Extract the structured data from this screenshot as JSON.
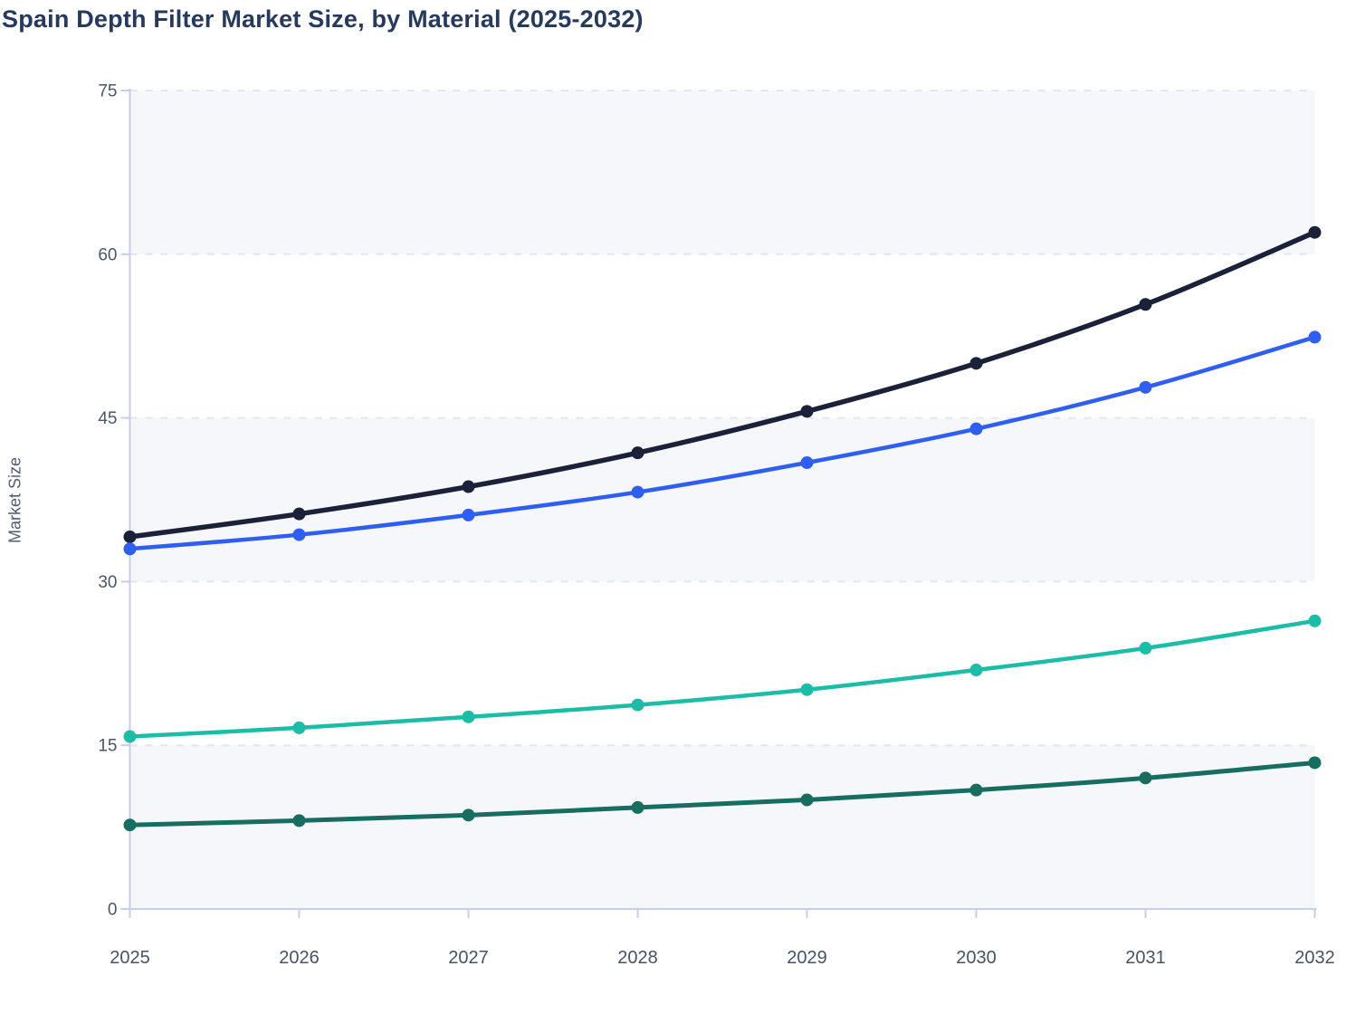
{
  "chart_data": {
    "type": "line",
    "title": "Spain Depth Filter Market Size, by Material (2025-2032)",
    "xlabel": "",
    "ylabel": "Market Size",
    "x": [
      "2025",
      "2026",
      "2027",
      "2028",
      "2029",
      "2030",
      "2031",
      "2032"
    ],
    "series": [
      {
        "name": "series-dark-navy",
        "color": "#1a2138",
        "line_width": 5.5,
        "values": [
          34.1,
          36.2,
          38.7,
          41.8,
          45.6,
          50.0,
          55.4,
          62.0
        ]
      },
      {
        "name": "series-blue",
        "color": "#2e5ff2",
        "line_width": 4.5,
        "values": [
          33.0,
          34.3,
          36.1,
          38.2,
          40.9,
          44.0,
          47.8,
          52.4
        ]
      },
      {
        "name": "series-teal",
        "color": "#1bbda6",
        "line_width": 4.5,
        "values": [
          15.8,
          16.6,
          17.6,
          18.7,
          20.1,
          21.9,
          23.9,
          26.4
        ]
      },
      {
        "name": "series-dark-green",
        "color": "#166d60",
        "line_width": 5.0,
        "values": [
          7.7,
          8.1,
          8.6,
          9.3,
          10.0,
          10.9,
          12.0,
          13.4
        ]
      }
    ],
    "ylim": [
      0,
      75
    ],
    "yticks": [
      0,
      15,
      30,
      45,
      60,
      75
    ],
    "grid": {
      "horizontal": true,
      "style": "dashed",
      "color": "#e3e6ec"
    },
    "legend": "none",
    "plot_bands": {
      "color": "#f5f7fa",
      "alternate": "filled from 0-15 upward every other band"
    },
    "colors": {
      "axis_line": "#c5cfec",
      "tick_label": "#49566c",
      "title": "#253a5e",
      "axis_title": "#4e5c74",
      "background": "#ffffff"
    },
    "marker": {
      "shape": "circle",
      "radius": 7
    }
  }
}
